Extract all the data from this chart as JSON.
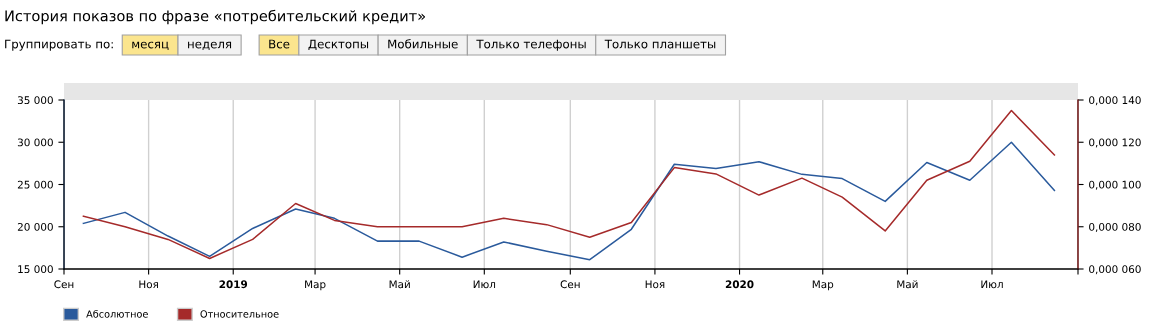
{
  "chart_data": {
    "type": "line",
    "title": "История показов по фразе «потребительский кредит»",
    "annotations": [
      "Группировать по:",
      "месяц",
      "неделя",
      "Все",
      "Десктопы",
      "Мобильные",
      "Только телефоны",
      "Только планшеты"
    ],
    "x": [
      "2018-09-15",
      "2018-10-15",
      "2018-11-15",
      "2018-12-15",
      "2019-01-15",
      "2019-02-15",
      "2019-03-15",
      "2019-04-15",
      "2019-05-15",
      "2019-06-15",
      "2019-07-15",
      "2019-08-15",
      "2019-09-15",
      "2019-10-15",
      "2019-11-15",
      "2019-12-15",
      "2020-01-15",
      "2020-02-15",
      "2020-03-15",
      "2020-04-15",
      "2020-05-15",
      "2020-06-15",
      "2020-07-15",
      "2020-08-15"
    ],
    "series": [
      {
        "name": "Абсолютное",
        "color": "#2a5a9c",
        "values": [
          20400,
          21700,
          18900,
          16500,
          19800,
          22100,
          21000,
          18300,
          18300,
          16400,
          18200,
          17100,
          16100,
          19700,
          27400,
          26900,
          27700,
          26200,
          25700,
          23000,
          27600,
          25500,
          30000,
          24300
        ]
      },
      {
        "name": "Относительное",
        "color": "#a52a2a",
        "axis": "y2",
        "values": [
          8.5e-05,
          8e-05,
          7.4e-05,
          6.5e-05,
          7.4e-05,
          9.1e-05,
          8.3e-05,
          8e-05,
          8e-05,
          8e-05,
          8.4e-05,
          8.1e-05,
          7.5e-05,
          8.2e-05,
          0.000108,
          0.000105,
          9.5e-05,
          0.000103,
          9.4e-05,
          7.8e-05,
          0.000102,
          0.000111,
          0.000135,
          0.000114
        ]
      }
    ],
    "xlim": [
      "2018-09-01",
      "2020-09-01"
    ],
    "xticks": [
      {
        "value": "2018-09-01",
        "label": "Сен"
      },
      {
        "value": "2018-11-01",
        "label": "Ноя"
      },
      {
        "value": "2019-01-01",
        "label": "2019"
      },
      {
        "value": "2019-03-01",
        "label": "Мар"
      },
      {
        "value": "2019-05-01",
        "label": "Май"
      },
      {
        "value": "2019-07-01",
        "label": "Июл"
      },
      {
        "value": "2019-09-01",
        "label": "Сен"
      },
      {
        "value": "2019-11-01",
        "label": "Ноя"
      },
      {
        "value": "2020-01-01",
        "label": "2020"
      },
      {
        "value": "2020-03-01",
        "label": "Мар"
      },
      {
        "value": "2020-05-01",
        "label": "Май"
      },
      {
        "value": "2020-07-01",
        "label": "Июл"
      },
      {
        "value": "2020-09-01",
        "label": null
      }
    ],
    "ylim": [
      15000,
      35000
    ],
    "yticks": [
      {
        "value": 15000,
        "label": "15 000"
      },
      {
        "value": 20000,
        "label": "20 000"
      },
      {
        "value": 25000,
        "label": "25 000"
      },
      {
        "value": 30000,
        "label": "30 000"
      },
      {
        "value": 35000,
        "label": "35 000"
      }
    ],
    "y2lim": [
      6e-05,
      0.00014
    ],
    "y2ticks": [
      {
        "value": 6e-05,
        "label": "0,000 060"
      },
      {
        "value": 8e-05,
        "label": "0,000 080"
      },
      {
        "value": 0.0001,
        "label": "0,000 100"
      },
      {
        "value": 0.00012,
        "label": "0,000 120"
      },
      {
        "value": 0.00014,
        "label": "0,000 140"
      }
    ],
    "grid": "x",
    "legend": "bottom left",
    "marker": "none",
    "line_style": "solid"
  }
}
